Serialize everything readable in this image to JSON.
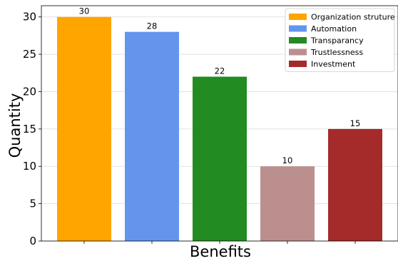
{
  "chart_data": {
    "type": "bar",
    "categories": [
      "Organization struture",
      "Automation",
      "Transparancy",
      "Trustlessness",
      "Investment"
    ],
    "values": [
      30,
      28,
      22,
      10,
      15
    ],
    "colors": [
      "#FFA500",
      "#6495ED",
      "#228B22",
      "#BC8F8F",
      "#A52A2A"
    ],
    "xlabel": "Benefits",
    "ylabel": "Quantity",
    "ylim": [
      0,
      31.5
    ],
    "yticks": [
      0,
      5,
      10,
      15,
      20,
      25,
      30
    ],
    "grid": true,
    "legend_position": "top-right",
    "data_labels": [
      "30",
      "28",
      "22",
      "10",
      "15"
    ]
  }
}
